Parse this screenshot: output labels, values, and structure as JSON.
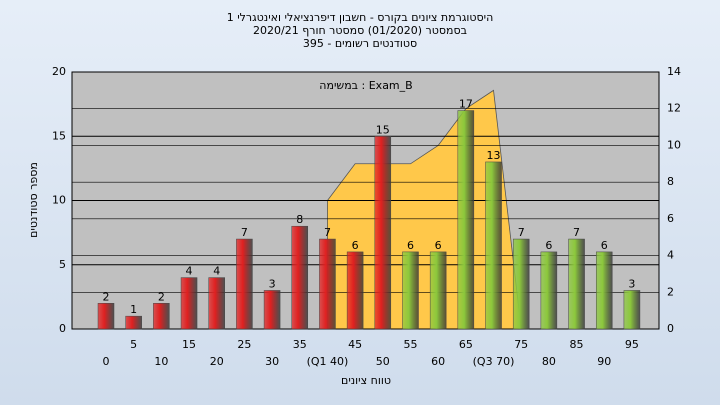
{
  "chart_data": {
    "type": "bar",
    "title": "היסטוגרמת ציונים בקורס - חשבון דיפרנציאלי ואינטגרלי 1",
    "subtitle": "בסמסטר  (01/2020)  סמסטר חורף  2020/21",
    "subtitle2": "סטודנטים רשומים - 395",
    "annotation": "Exam_B : במשימה",
    "xlabel": "טווח ציונים",
    "ylabel": "מספר סטודנטים",
    "categories": [
      "0",
      "5",
      "10",
      "15",
      "20",
      "25",
      "30",
      "35",
      "(Q1 40)",
      "45",
      "50",
      "55",
      "60",
      "65",
      "(Q3 70)",
      "75",
      "80",
      "85",
      "90",
      "95"
    ],
    "values": [
      2,
      1,
      2,
      4,
      4,
      7,
      3,
      8,
      7,
      6,
      15,
      6,
      6,
      17,
      13,
      7,
      6,
      7,
      6,
      3
    ],
    "bar_colors": [
      "#e02020",
      "#e02020",
      "#e02020",
      "#e02020",
      "#e02020",
      "#e02020",
      "#e02020",
      "#e02020",
      "#e02020",
      "#e02020",
      "#e02020",
      "#8cc83c",
      "#8cc83c",
      "#8cc83c",
      "#8cc83c",
      "#8cc83c",
      "#8cc83c",
      "#8cc83c",
      "#8cc83c",
      "#8cc83c"
    ],
    "area": {
      "color": "#ffc84a",
      "axis": "y2",
      "values": [
        null,
        null,
        null,
        null,
        null,
        null,
        null,
        null,
        7,
        9,
        9,
        9,
        10,
        12,
        13,
        0,
        null,
        null,
        null,
        null
      ]
    },
    "ylim": [
      0,
      20
    ],
    "yticks": [
      0,
      5,
      10,
      15,
      20
    ],
    "y2lim": [
      0,
      14
    ],
    "y2ticks": [
      0,
      2,
      4,
      6,
      8,
      10,
      12,
      14
    ],
    "grid": true
  }
}
